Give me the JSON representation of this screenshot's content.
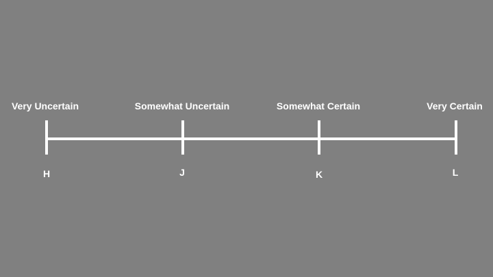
{
  "scale": {
    "points": [
      {
        "top_label": "Very Uncertain",
        "bottom_label": "H"
      },
      {
        "top_label": "Somewhat Uncertain",
        "bottom_label": "J"
      },
      {
        "top_label": "Somewhat Certain",
        "bottom_label": "K"
      },
      {
        "top_label": "Very Certain",
        "bottom_label": "L"
      }
    ]
  },
  "colors": {
    "background": "#808080",
    "foreground": "#ffffff"
  }
}
